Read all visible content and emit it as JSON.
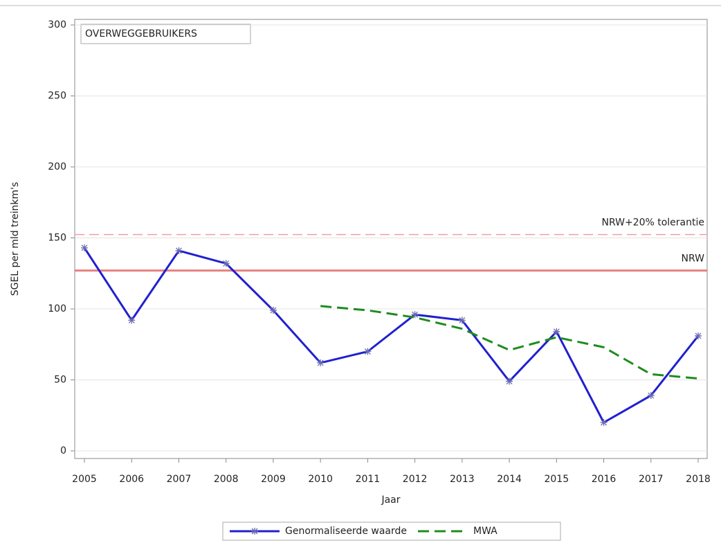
{
  "chart_data": {
    "type": "line",
    "annotation": "OVERWEGGEBRUIKERS",
    "x_label": "Jaar",
    "y_label": "SGEL per mld treinkm's",
    "categories": [
      "2005",
      "2006",
      "2007",
      "2008",
      "2009",
      "2010",
      "2011",
      "2012",
      "2013",
      "2014",
      "2015",
      "2016",
      "2017",
      "2018"
    ],
    "series": [
      {
        "name": "Genormaliseerde waarde",
        "color": "#2020d0",
        "dash": false,
        "marker": true,
        "values": [
          143,
          92,
          141,
          132,
          99,
          62,
          70,
          96,
          92,
          49,
          84,
          20,
          39,
          81
        ]
      },
      {
        "name": "MWA",
        "color": "#1e8c1e",
        "dash": true,
        "marker": false,
        "values": [
          null,
          null,
          null,
          null,
          null,
          102,
          99,
          94,
          86,
          71,
          80,
          73,
          54,
          51
        ]
      }
    ],
    "reference_lines": [
      {
        "label": "NRW",
        "value": 127,
        "color": "#e88080",
        "dash": false
      },
      {
        "label": "NRW+20% tolerantie",
        "value": 152.4,
        "color": "#eea0a0",
        "dash": true
      }
    ],
    "ylim": [
      0,
      300
    ],
    "yticks": [
      0,
      50,
      100,
      150,
      200,
      250,
      300
    ],
    "grid": true,
    "legend": "bottom"
  }
}
